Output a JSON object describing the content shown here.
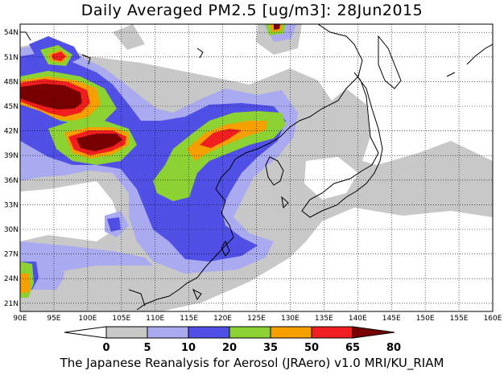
{
  "title": "Daily Averaged PM2.5 [ug/m3]: 28Jun2015",
  "footer": "The Japanese Reanalysis for Aerosol (JRAero) v1.0 MRI/KU_RIAM",
  "lon_labels": [
    "90E",
    "95E",
    "100E",
    "105E",
    "110E",
    "115E",
    "120E",
    "125E",
    "130E",
    "135E",
    "140E",
    "145E",
    "150E",
    "155E",
    "160E"
  ],
  "lat_labels": [
    "54N",
    "51N",
    "48N",
    "45N",
    "42N",
    "39N",
    "36N",
    "33N",
    "30N",
    "27N",
    "24N",
    "21N"
  ],
  "colorbar": {
    "labels": [
      "0",
      "5",
      "10",
      "20",
      "35",
      "50",
      "65",
      "80"
    ],
    "colors": [
      "#ffffff",
      "#c8c8c8",
      "#aaaaf0",
      "#5050e6",
      "#8cd232",
      "#f5a000",
      "#f01e1e",
      "#780000"
    ]
  },
  "map_extent": {
    "lon": [
      90,
      160
    ],
    "lat": [
      20,
      55
    ]
  }
}
